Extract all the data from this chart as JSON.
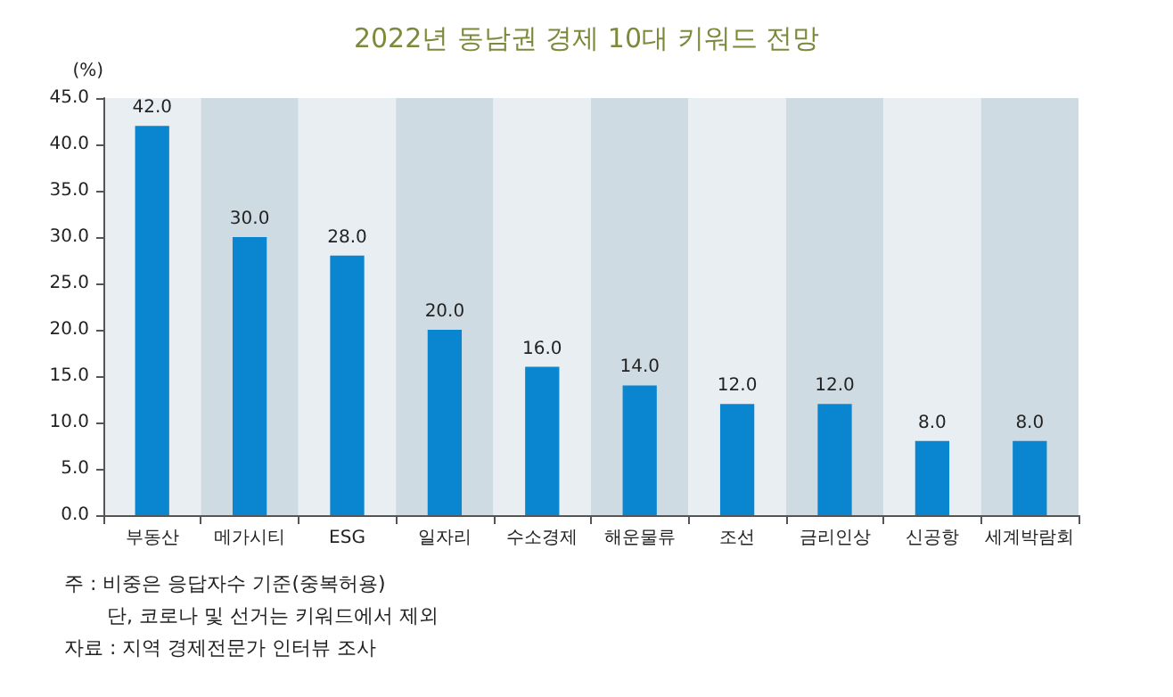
{
  "chart_data": {
    "type": "bar",
    "title": "2022년 동남권 경제 10대 키워드 전망",
    "ylabel": "(%)",
    "categories": [
      "부동산",
      "메가시티",
      "ESG",
      "일자리",
      "수소경제",
      "해운물류",
      "조선",
      "금리인상",
      "신공항",
      "세계박람회"
    ],
    "values": [
      42,
      30,
      28,
      20,
      16,
      14,
      12,
      12,
      8,
      8
    ],
    "value_labels": [
      "42.0",
      "30.0",
      "28.0",
      "20.0",
      "16.0",
      "14.0",
      "12.0",
      "12.0",
      "8.0",
      "8.0"
    ],
    "color": "#0a86d0",
    "ylim": [
      0,
      45
    ],
    "yticks": [
      {
        "value": 0,
        "label": "0.0"
      },
      {
        "value": 5,
        "label": "5.0"
      },
      {
        "value": 10,
        "label": "10.0"
      },
      {
        "value": 15,
        "label": "15.0"
      },
      {
        "value": 20,
        "label": "20.0"
      },
      {
        "value": 25,
        "label": "25.0"
      },
      {
        "value": 30,
        "label": "30.0"
      },
      {
        "value": 35,
        "label": "35.0"
      },
      {
        "value": 40,
        "label": "40.0"
      },
      {
        "value": 45,
        "label": "45.0"
      }
    ],
    "bands": [
      {
        "axis": "x",
        "from": "부동산",
        "to": "부동산",
        "color": "#e8eef2"
      },
      {
        "axis": "x",
        "from": "메가시티",
        "to": "메가시티",
        "color": "#cfdbe3"
      },
      {
        "axis": "x",
        "from": "ESG",
        "to": "ESG",
        "color": "#e8eef2"
      },
      {
        "axis": "x",
        "from": "일자리",
        "to": "일자리",
        "color": "#cfdbe3"
      },
      {
        "axis": "x",
        "from": "수소경제",
        "to": "수소경제",
        "color": "#e8eef2"
      },
      {
        "axis": "x",
        "from": "해운물류",
        "to": "해운물류",
        "color": "#cfdbe3"
      },
      {
        "axis": "x",
        "from": "조선",
        "to": "조선",
        "color": "#e8eef2"
      },
      {
        "axis": "x",
        "from": "금리인상",
        "to": "금리인상",
        "color": "#cfdbe3"
      },
      {
        "axis": "x",
        "from": "신공항",
        "to": "신공항",
        "color": "#e8eef2"
      },
      {
        "axis": "x",
        "from": "세계박람회",
        "to": "세계박람회",
        "color": "#cfdbe3"
      }
    ],
    "grid": false,
    "annotations": [
      "주 : 비중은 응답자수 기준(중복허용)",
      "단, 코로나 및 선거는 키워드에서 제외",
      "자료 : 지역 경제전문가 인터뷰 조사"
    ]
  }
}
